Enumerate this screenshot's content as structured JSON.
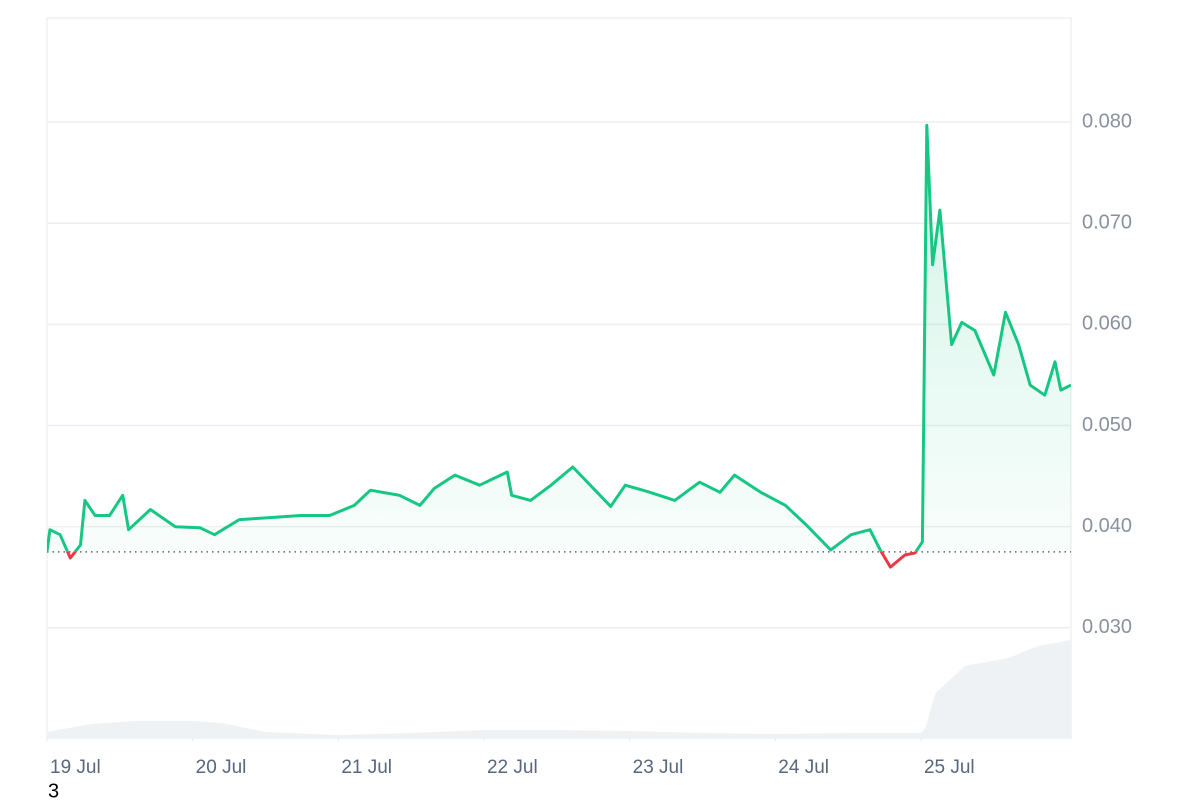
{
  "chart_data": {
    "type": "line",
    "series": [
      {
        "x": [
          19.0,
          19.02,
          19.09,
          19.16,
          19.23,
          19.26,
          19.33,
          19.43,
          19.52,
          19.56,
          19.71,
          19.88,
          20.05,
          20.15,
          20.32,
          20.53,
          20.74,
          20.94,
          21.11,
          21.22,
          21.42,
          21.56,
          21.66,
          21.8,
          21.97,
          22.16,
          22.19,
          22.32,
          22.46,
          22.61,
          22.73,
          22.87,
          22.97,
          23.14,
          23.31,
          23.48,
          23.62,
          23.72,
          23.9,
          24.07,
          24.21,
          24.38,
          24.52,
          24.65,
          24.72,
          24.79,
          24.89,
          24.96,
          25.01,
          25.04,
          25.08,
          25.13,
          25.21,
          25.28,
          25.37,
          25.5,
          25.58,
          25.67,
          25.75,
          25.85,
          25.92,
          25.96,
          26.03
        ],
        "values": [
          0.0375,
          0.0397,
          0.0392,
          0.0369,
          0.0382,
          0.0426,
          0.0411,
          0.0411,
          0.0431,
          0.0397,
          0.0417,
          0.04,
          0.0399,
          0.0392,
          0.0407,
          0.0409,
          0.0411,
          0.0411,
          0.0421,
          0.0436,
          0.0431,
          0.0421,
          0.0438,
          0.0451,
          0.0441,
          0.0454,
          0.0431,
          0.0426,
          0.0441,
          0.0459,
          0.0441,
          0.042,
          0.0441,
          0.0434,
          0.0426,
          0.0444,
          0.0434,
          0.0451,
          0.0434,
          0.0421,
          0.0402,
          0.0377,
          0.0392,
          0.0397,
          0.0377,
          0.036,
          0.0372,
          0.0374,
          0.0385,
          0.0797,
          0.0659,
          0.0713,
          0.058,
          0.0602,
          0.0594,
          0.055,
          0.0612,
          0.058,
          0.054,
          0.053,
          0.0563,
          0.0535,
          0.054
        ],
        "color": "#16c784",
        "down_color": "#ea3943"
      },
      {
        "x": [
          19.0,
          19.3,
          19.6,
          20.0,
          20.2,
          20.5,
          21.0,
          21.5,
          22.0,
          22.5,
          23.0,
          23.5,
          24.0,
          24.5,
          25.0,
          25.03,
          25.1,
          25.3,
          25.6,
          25.8,
          26.03
        ],
        "values": [
          6,
          14,
          17,
          17,
          15,
          6,
          3,
          5,
          8,
          8,
          7,
          5,
          4,
          5,
          5,
          10,
          45,
          72,
          80,
          92,
          98
        ],
        "color": "#eff2f5",
        "axis": "y2"
      }
    ],
    "baseline": 0.0375,
    "xlim": [
      19,
      26.03
    ],
    "xticks": [
      {
        "value": 19,
        "label": "19 Jul"
      },
      {
        "value": 20,
        "label": "20 Jul"
      },
      {
        "value": 21,
        "label": "21 Jul"
      },
      {
        "value": 22,
        "label": "22 Jul"
      },
      {
        "value": 23,
        "label": "23 Jul"
      },
      {
        "value": 24,
        "label": "24 Jul"
      },
      {
        "value": 25,
        "label": "25 Jul"
      }
    ],
    "ylim": [
      0.0191,
      0.0903
    ],
    "yticks": [
      {
        "value": 0.03,
        "label": "0.030"
      },
      {
        "value": 0.04,
        "label": "0.040"
      },
      {
        "value": 0.05,
        "label": "0.050"
      },
      {
        "value": 0.06,
        "label": "0.060"
      },
      {
        "value": 0.07,
        "label": "0.070"
      },
      {
        "value": 0.08,
        "label": "0.080"
      }
    ],
    "y2lim": [
      0,
      110
    ],
    "grid": true
  },
  "footer_text": "3"
}
